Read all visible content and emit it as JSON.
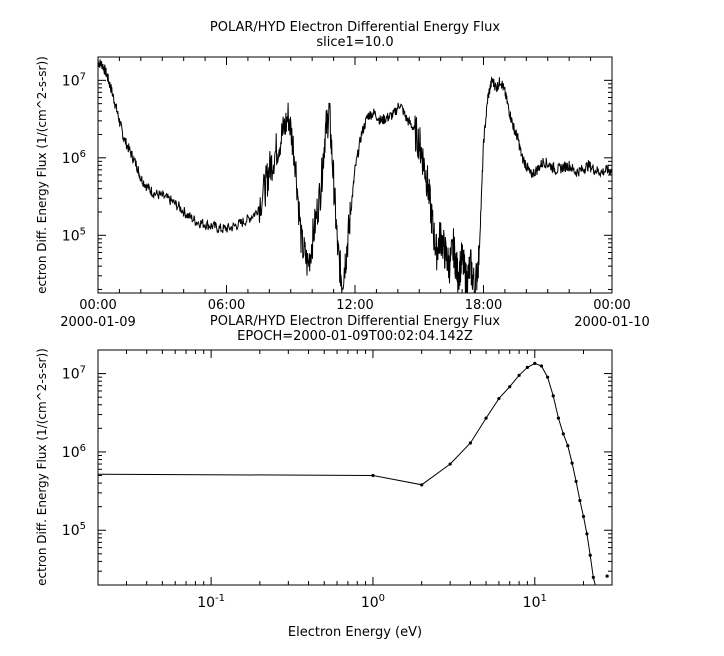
{
  "chart_data": [
    {
      "type": "line",
      "title": "POLAR/HYD  Electron Differential Energy Flux",
      "subtitle": "slice1=10.0",
      "ylabel": "ectron Diff. Energy Flux (1/(cm^2-s-sr))",
      "xlabel": "",
      "y_scale": "log",
      "ylim": [
        18000,
        20000000
      ],
      "x_ticks": [
        {
          "label": "00:00",
          "sublabel": "2000-01-09",
          "hour": 0
        },
        {
          "label": "06:00",
          "sublabel": "",
          "hour": 6
        },
        {
          "label": "12:00",
          "sublabel": "",
          "hour": 12
        },
        {
          "label": "18:00",
          "sublabel": "",
          "hour": 18
        },
        {
          "label": "00:00",
          "sublabel": "2000-01-10",
          "hour": 24
        }
      ],
      "y_ticks": [
        {
          "base": "10",
          "exp": "5",
          "value": 100000
        },
        {
          "base": "10",
          "exp": "6",
          "value": 1000000
        },
        {
          "base": "10",
          "exp": "7",
          "value": 10000000
        }
      ],
      "xlim_hours": [
        0,
        24
      ],
      "series": [
        {
          "hours": [
            0.0,
            0.2,
            0.4,
            0.6,
            0.8,
            1.0,
            1.2,
            1.5,
            1.8,
            2.0,
            2.3,
            2.6,
            3.0,
            3.4,
            3.8,
            4.2,
            4.6,
            5.0,
            5.4,
            5.8,
            6.2,
            6.6,
            7.0,
            7.4,
            7.8,
            8.0,
            8.3,
            8.6,
            8.9,
            9.2,
            9.5,
            9.8,
            10.1,
            10.4,
            10.6,
            10.8,
            11.0,
            11.2,
            11.4,
            11.6,
            11.8,
            12.0,
            12.3,
            12.6,
            12.9,
            13.2,
            13.5,
            13.8,
            14.1,
            14.4,
            14.7,
            15.0,
            15.2,
            15.4,
            15.6,
            15.8,
            16.0,
            16.2,
            16.4,
            16.6,
            16.8,
            17.0,
            17.2,
            17.4,
            17.6,
            17.8,
            18.0,
            18.2,
            18.4,
            18.6,
            18.8,
            19.0,
            19.2,
            19.4,
            19.6,
            19.8,
            20.0,
            20.2,
            20.5,
            20.8,
            21.1,
            21.4,
            21.7,
            22.0,
            22.3,
            22.6,
            22.9,
            23.2,
            23.5,
            23.8,
            24.0
          ],
          "values": [
            17000000,
            16000000,
            12000000,
            8000000,
            5000000,
            3000000,
            1800000,
            1200000,
            800000,
            550000,
            420000,
            350000,
            320000,
            280000,
            230000,
            180000,
            150000,
            140000,
            130000,
            120000,
            125000,
            140000,
            160000,
            200000,
            400000,
            700000,
            1200000,
            2000000,
            3500000,
            1000000,
            80000,
            40000,
            120000,
            400000,
            2000000,
            4000000,
            500000,
            60000,
            25000,
            60000,
            200000,
            700000,
            2000000,
            3500000,
            3800000,
            3000000,
            3300000,
            3600000,
            5000000,
            3200000,
            2500000,
            1600000,
            900000,
            450000,
            150000,
            60000,
            100000,
            60000,
            40000,
            70000,
            30000,
            50000,
            25000,
            40000,
            20000,
            60000,
            1500000,
            6000000,
            10000000,
            8000000,
            10000000,
            7000000,
            4000000,
            2500000,
            1800000,
            1000000,
            800000,
            600000,
            700000,
            900000,
            800000,
            700000,
            750000,
            800000,
            650000,
            700000,
            800000,
            700000,
            650000,
            700000,
            650000
          ]
        }
      ]
    },
    {
      "type": "line",
      "title": "POLAR/HYD  Electron Differential Energy Flux",
      "subtitle": "EPOCH=2000-01-09T00:02:04.142Z",
      "ylabel": "ectron Diff. Energy Flux (1/(cm^2-s-sr))",
      "xlabel": "Electron Energy (eV)",
      "x_scale": "log",
      "y_scale": "log",
      "xlim": [
        0.02,
        30
      ],
      "ylim": [
        20000,
        20000000
      ],
      "x_ticks": [
        {
          "base": "10",
          "exp": "-1",
          "value": 0.1
        },
        {
          "base": "10",
          "exp": "0",
          "value": 1
        },
        {
          "base": "10",
          "exp": "1",
          "value": 10
        }
      ],
      "y_ticks": [
        {
          "base": "10",
          "exp": "5",
          "value": 100000
        },
        {
          "base": "10",
          "exp": "6",
          "value": 1000000
        },
        {
          "base": "10",
          "exp": "7",
          "value": 10000000
        }
      ],
      "series": [
        {
          "x": [
            0.02,
            1.0,
            2.0,
            3.0,
            4.0,
            5.0,
            6.0,
            7.0,
            8.0,
            9.0,
            10.0,
            11.0,
            12.0,
            13.0,
            14.0,
            15.0,
            16.0,
            17.0,
            18.0,
            19.0,
            20.0,
            21.0,
            22.0,
            23.0,
            24.0
          ],
          "y": [
            520000,
            500000,
            380000,
            700000,
            1300000,
            2700000,
            4800000,
            6800000,
            9500000,
            12000000,
            13500000,
            12500000,
            9000000,
            5200000,
            2700000,
            1700000,
            1200000,
            720000,
            420000,
            240000,
            150000,
            90000,
            48000,
            25000,
            18000
          ]
        }
      ],
      "isolated_point": {
        "x": 28.0,
        "y": 26000
      }
    }
  ]
}
